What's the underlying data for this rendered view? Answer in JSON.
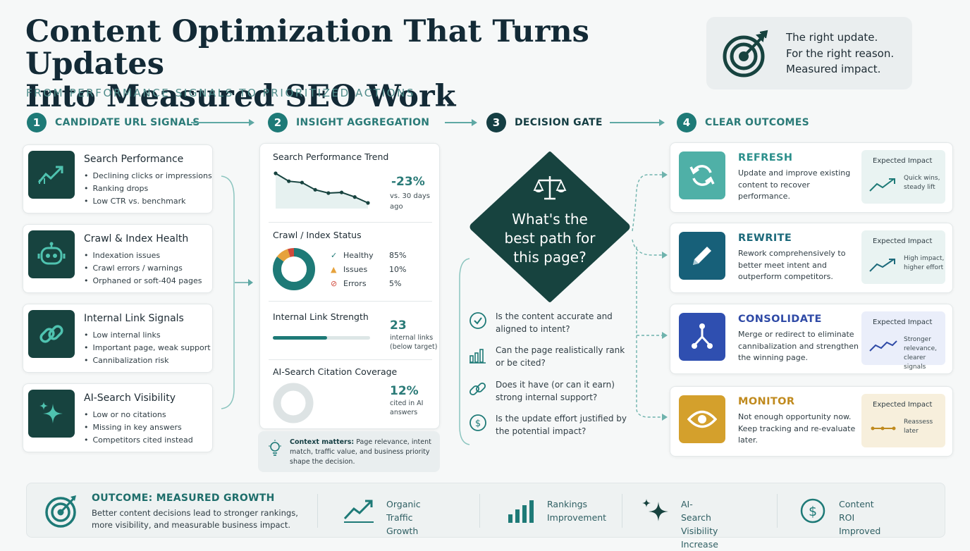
{
  "header": {
    "title_line1": "Content Optimization That Turns Updates",
    "title_line2": "Into Measured SEO Work",
    "subtitle": "FROM PERFORMANCE SIGNALS TO PRIORITIZED ACTIONS"
  },
  "motto": {
    "line1": "The right update.",
    "line2": "For the right reason.",
    "line3": "Measured impact.",
    "icon": "target-icon"
  },
  "steps": [
    {
      "num": "1",
      "label": "CANDIDATE URL SIGNALS"
    },
    {
      "num": "2",
      "label": "INSIGHT AGGREGATION"
    },
    {
      "num": "3",
      "label": "DECISION GATE"
    },
    {
      "num": "4",
      "label": "CLEAR OUTCOMES"
    }
  ],
  "signals": [
    {
      "title": "Search Performance",
      "icon": "trend-up-icon",
      "items": [
        "Declining clicks or impressions",
        "Ranking drops",
        "Low CTR vs. benchmark"
      ]
    },
    {
      "title": "Crawl & Index Health",
      "icon": "robot-icon",
      "items": [
        "Indexation issues",
        "Crawl errors / warnings",
        "Orphaned or soft-404 pages"
      ]
    },
    {
      "title": "Internal Link Signals",
      "icon": "link-icon",
      "items": [
        "Low internal links",
        "Important page, weak support",
        "Cannibalization risk"
      ]
    },
    {
      "title": "AI-Search Visibility",
      "icon": "sparkle-icon",
      "items": [
        "Low or no citations",
        "Missing in key answers",
        "Competitors cited instead"
      ]
    }
  ],
  "aggregation": {
    "trend": {
      "title": "Search Performance Trend",
      "value": "-23%",
      "note_line1": "vs. 30 days",
      "note_line2": "ago",
      "points": [
        100,
        88,
        86,
        75,
        70,
        71,
        64,
        55
      ]
    },
    "crawl": {
      "title": "Crawl / Index Status",
      "rows": [
        {
          "label": "Healthy",
          "value": "85%",
          "pct": 85,
          "color": "#1e7a77"
        },
        {
          "label": "Issues",
          "value": "10%",
          "pct": 10,
          "color": "#e6a23c"
        },
        {
          "label": "Errors",
          "value": "5%",
          "pct": 5,
          "color": "#d0493b"
        }
      ]
    },
    "links": {
      "title": "Internal Link Strength",
      "value": "23",
      "note_line1": "internal links",
      "note_line2": "(below target)",
      "fill": 0.56
    },
    "ai": {
      "title": "AI-Search Citation Coverage",
      "value": "12%",
      "note_line1": "cited in AI",
      "note_line2": "answers",
      "pct": 12
    }
  },
  "context": {
    "bold": "Context matters:",
    "text_line1": "Page relevance, intent",
    "text_line2": "match, traffic value, and business priority",
    "text_line3": "shape the decision."
  },
  "decision": {
    "line1": "What's the",
    "line2": "best path for",
    "line3": "this page?"
  },
  "questions": [
    {
      "line1": "Is the content accurate and",
      "line2": "aligned to intent?",
      "icon": "check-circle-icon"
    },
    {
      "line1": "Can the page realistically rank",
      "line2": "or be cited?",
      "icon": "bar-chart-icon"
    },
    {
      "line1": "Does it have (or can it earn)",
      "line2": "strong internal support?",
      "icon": "link-icon"
    },
    {
      "line1": "Is the update effort justified by",
      "line2": "the potential impact?",
      "icon": "dollar-circle-icon"
    }
  ],
  "outcomes": [
    {
      "title": "REFRESH",
      "color": "#2b8f8b",
      "icon_bg": "#4fb0a7",
      "icon": "refresh-icon",
      "desc_line1": "Update and improve existing",
      "desc_line2": "content to recover performance.",
      "desc_line3": "",
      "impact_label": "Expected Impact",
      "impact_line1": "Quick wins,",
      "impact_line2": "steady lift",
      "impact_line3": ""
    },
    {
      "title": "REWRITE",
      "color": "#1d6a7b",
      "icon_bg": "#176079",
      "icon": "pencil-icon",
      "desc_line1": "Rework comprehensively to",
      "desc_line2": "better meet intent and",
      "desc_line3": "outperform competitors.",
      "impact_label": "Expected Impact",
      "impact_line1": "High impact,",
      "impact_line2": "higher effort",
      "impact_line3": ""
    },
    {
      "title": "CONSOLIDATE",
      "color": "#2f4aa6",
      "icon_bg": "#2f4fb0",
      "icon": "merge-icon",
      "desc_line1": "Merge or redirect to eliminate",
      "desc_line2": "cannibalization and strengthen",
      "desc_line3": "the winning page.",
      "impact_label": "Expected Impact",
      "impact_line1": "Stronger",
      "impact_line2": "relevance,",
      "impact_line3": "clearer signals"
    },
    {
      "title": "MONITOR",
      "color": "#c08a1e",
      "icon_bg": "#d4a02c",
      "icon": "eye-icon",
      "desc_line1": "Not enough opportunity now.",
      "desc_line2": "Keep tracking and re-evaluate",
      "desc_line3": "later.",
      "impact_label": "Expected Impact",
      "impact_line1": "Reassess",
      "impact_line2": "later",
      "impact_line3": ""
    }
  ],
  "bottom": {
    "title": "OUTCOME: MEASURED GROWTH",
    "text_line1": "Better content decisions lead to stronger rankings,",
    "text_line2": "more visibility, and measurable business impact.",
    "metrics": [
      {
        "line1": "Organic Traffic",
        "line2": "Growth",
        "icon": "trend-up-icon"
      },
      {
        "line1": "Rankings",
        "line2": "Improvement",
        "icon": "bar-chart-icon"
      },
      {
        "line1": "AI-Search Visibility",
        "line2": "Increase",
        "icon": "sparkle-icon"
      },
      {
        "line1": "Content ROI",
        "line2": "Improved",
        "icon": "dollar-circle-icon"
      }
    ]
  }
}
